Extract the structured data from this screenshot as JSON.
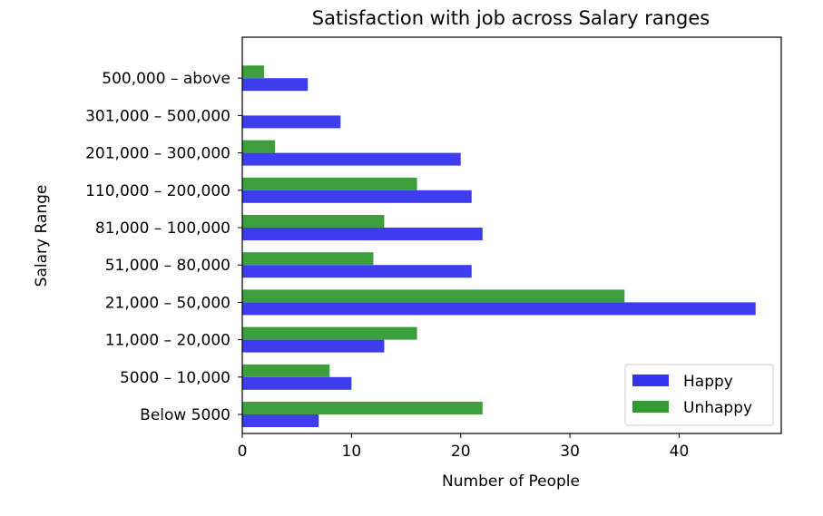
{
  "chart_data": {
    "type": "bar",
    "orientation": "horizontal",
    "title": "Satisfaction with job across Salary ranges",
    "xlabel": "Number of People",
    "ylabel": "Salary Range",
    "categories": [
      "Below 5000",
      "5000 – 10,000",
      "11,000 – 20,000",
      "21,000 – 50,000",
      "51,000 – 80,000",
      "81,000 – 100,000",
      "110,000 – 200,000",
      "201,000 – 300,000",
      "301,000 – 500,000",
      "500,000 – above"
    ],
    "series": [
      {
        "name": "Happy",
        "color": "#3333ee",
        "values": [
          7,
          10,
          13,
          47,
          21,
          22,
          21,
          20,
          9,
          6
        ]
      },
      {
        "name": "Unhappy",
        "color": "#339933",
        "values": [
          22,
          8,
          16,
          35,
          12,
          13,
          16,
          3,
          0,
          2
        ]
      }
    ],
    "xlim": [
      0,
      49.35
    ],
    "xticks": [
      0,
      10,
      20,
      30,
      40
    ],
    "grid": false,
    "legend_position": "lower-right"
  }
}
